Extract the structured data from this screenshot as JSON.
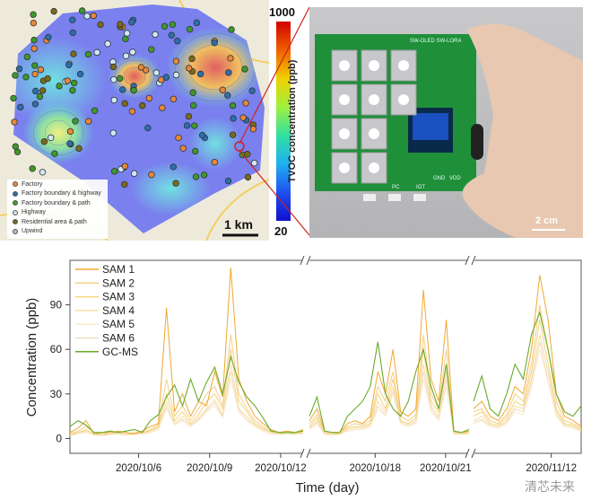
{
  "map": {
    "legend": [
      {
        "label": "Factory",
        "color": "#e8883a"
      },
      {
        "label": "Factory boundary & highway",
        "color": "#2a6fb0"
      },
      {
        "label": "Factory boundary & path",
        "color": "#3d9a2a"
      },
      {
        "label": "Highway",
        "color": "#cfe8f5"
      },
      {
        "label": "Residential area & path",
        "color": "#7a6a1a"
      },
      {
        "label": "Upwind",
        "color": "#b8b8c8"
      }
    ],
    "scale_label": "1 km"
  },
  "colorbar": {
    "max_label": "1000",
    "min_label": "20",
    "title": "TVOC concentration (ppb)"
  },
  "device": {
    "switch_label": "SW-OLED SW-LORA",
    "port_labels": [
      "PC",
      "IOT",
      "GND",
      "VDD"
    ],
    "scale_label": "2 cm",
    "accent": "#1f8f3a"
  },
  "watermark": "清芯未来",
  "chart_data": {
    "type": "line",
    "xlabel": "Time (day)",
    "ylabel": "Concentration (ppb)",
    "ylim": [
      -10,
      120
    ],
    "yticks": [
      0,
      30,
      60,
      90
    ],
    "grid": false,
    "legend_position": "top-left",
    "xticks": [
      {
        "label": "2020/10/6",
        "day": 6
      },
      {
        "label": "2020/10/9",
        "day": 9
      },
      {
        "label": "2020/10/12",
        "day": 12
      },
      {
        "label": "2020/10/18",
        "day": 18
      },
      {
        "label": "2020/10/21",
        "day": 21
      },
      {
        "label": "2020/11/12",
        "day": 43
      }
    ],
    "series_meta": [
      {
        "name": "SAM 1",
        "color": "#f0a830"
      },
      {
        "name": "SAM 2",
        "color": "#f4cf8c"
      },
      {
        "name": "SAM 3",
        "color": "#f2d67a"
      },
      {
        "name": "SAM 4",
        "color": "#f6dfac"
      },
      {
        "name": "SAM 5",
        "color": "#f9eacb"
      },
      {
        "name": "SAM 6",
        "color": "#f6dcc4"
      },
      {
        "name": "GC-MS",
        "color": "#6aaa2a"
      }
    ],
    "segments": [
      {
        "start_day": 3.1,
        "end_day": 12.95,
        "series": {
          "SAM 1": [
            4,
            7,
            12,
            3,
            4,
            4,
            5,
            4,
            3,
            5,
            8,
            10,
            88,
            18,
            30,
            15,
            25,
            22,
            45,
            28,
            115,
            40,
            25,
            15,
            10,
            6,
            4,
            5,
            4,
            6
          ],
          "SAM 2": [
            3,
            5,
            8,
            4,
            3,
            4,
            4,
            3,
            4,
            4,
            6,
            9,
            40,
            15,
            22,
            12,
            20,
            30,
            35,
            22,
            70,
            30,
            20,
            12,
            8,
            5,
            4,
            4,
            4,
            5
          ],
          "SAM 3": [
            2,
            4,
            6,
            3,
            3,
            3,
            4,
            3,
            3,
            4,
            5,
            8,
            30,
            12,
            18,
            10,
            16,
            25,
            30,
            20,
            60,
            25,
            18,
            10,
            7,
            4,
            3,
            4,
            3,
            4
          ],
          "SAM 4": [
            3,
            4,
            5,
            3,
            2,
            3,
            3,
            3,
            3,
            3,
            5,
            7,
            25,
            10,
            15,
            9,
            14,
            20,
            26,
            16,
            50,
            20,
            15,
            9,
            6,
            4,
            3,
            3,
            3,
            4
          ],
          "SAM 5": [
            2,
            3,
            4,
            2,
            2,
            3,
            3,
            2,
            3,
            3,
            4,
            6,
            20,
            9,
            12,
            8,
            12,
            18,
            22,
            14,
            40,
            18,
            12,
            8,
            5,
            3,
            3,
            3,
            3,
            3
          ],
          "SAM 6": [
            2,
            3,
            5,
            3,
            2,
            3,
            3,
            3,
            3,
            3,
            4,
            6,
            22,
            9,
            13,
            8,
            13,
            19,
            24,
            15,
            45,
            19,
            13,
            8,
            5,
            3,
            3,
            3,
            3,
            3
          ],
          "GC-MS": [
            8,
            12,
            9,
            4,
            4,
            5,
            4,
            5,
            6,
            4,
            12,
            16,
            28,
            36,
            22,
            40,
            25,
            38,
            48,
            30,
            55,
            38,
            28,
            22,
            14,
            5,
            4,
            4,
            4,
            5
          ]
        }
      },
      {
        "start_day": 15.2,
        "end_day": 22.0,
        "series": {
          "SAM 1": [
            12,
            20,
            5,
            4,
            4,
            10,
            12,
            10,
            15,
            45,
            30,
            60,
            18,
            15,
            20,
            100,
            40,
            25,
            80,
            5,
            4,
            5
          ],
          "SAM 2": [
            10,
            16,
            4,
            3,
            4,
            8,
            10,
            9,
            12,
            35,
            25,
            45,
            15,
            12,
            16,
            70,
            30,
            20,
            60,
            4,
            4,
            4
          ],
          "SAM 3": [
            8,
            14,
            4,
            3,
            3,
            7,
            8,
            8,
            10,
            30,
            20,
            40,
            12,
            10,
            14,
            60,
            25,
            18,
            50,
            4,
            3,
            4
          ],
          "SAM 4": [
            7,
            12,
            3,
            3,
            3,
            6,
            7,
            7,
            9,
            25,
            18,
            35,
            11,
            9,
            12,
            50,
            22,
            15,
            45,
            3,
            3,
            3
          ],
          "SAM 5": [
            6,
            10,
            3,
            2,
            3,
            5,
            6,
            6,
            8,
            20,
            15,
            30,
            10,
            8,
            10,
            40,
            18,
            12,
            35,
            3,
            3,
            3
          ],
          "SAM 6": [
            6,
            11,
            3,
            3,
            3,
            5,
            6,
            6,
            8,
            22,
            16,
            32,
            10,
            8,
            11,
            45,
            20,
            13,
            40,
            3,
            3,
            3
          ],
          "GC-MS": [
            15,
            28,
            5,
            4,
            4,
            15,
            20,
            25,
            35,
            65,
            30,
            20,
            15,
            25,
            45,
            60,
            35,
            20,
            50,
            5,
            4,
            6
          ]
        }
      },
      {
        "start_day": 40.4,
        "end_day": 44.0,
        "series": {
          "SAM 1": [
            20,
            25,
            15,
            12,
            20,
            35,
            30,
            60,
            110,
            80,
            30,
            15,
            12,
            8
          ],
          "SAM 2": [
            18,
            20,
            12,
            10,
            16,
            30,
            25,
            50,
            90,
            60,
            25,
            12,
            10,
            7
          ],
          "SAM 3": [
            15,
            18,
            10,
            9,
            14,
            25,
            22,
            45,
            80,
            50,
            20,
            10,
            9,
            6
          ],
          "SAM 4": [
            12,
            15,
            9,
            8,
            12,
            22,
            20,
            40,
            70,
            45,
            18,
            9,
            8,
            5
          ],
          "SAM 5": [
            10,
            12,
            8,
            7,
            10,
            18,
            16,
            35,
            60,
            38,
            15,
            8,
            7,
            5
          ],
          "SAM 6": [
            11,
            13,
            8,
            7,
            11,
            20,
            18,
            38,
            65,
            40,
            16,
            8,
            7,
            5
          ],
          "GC-MS": [
            25,
            42,
            20,
            15,
            30,
            50,
            40,
            70,
            85,
            60,
            30,
            18,
            15,
            22
          ]
        }
      }
    ]
  }
}
